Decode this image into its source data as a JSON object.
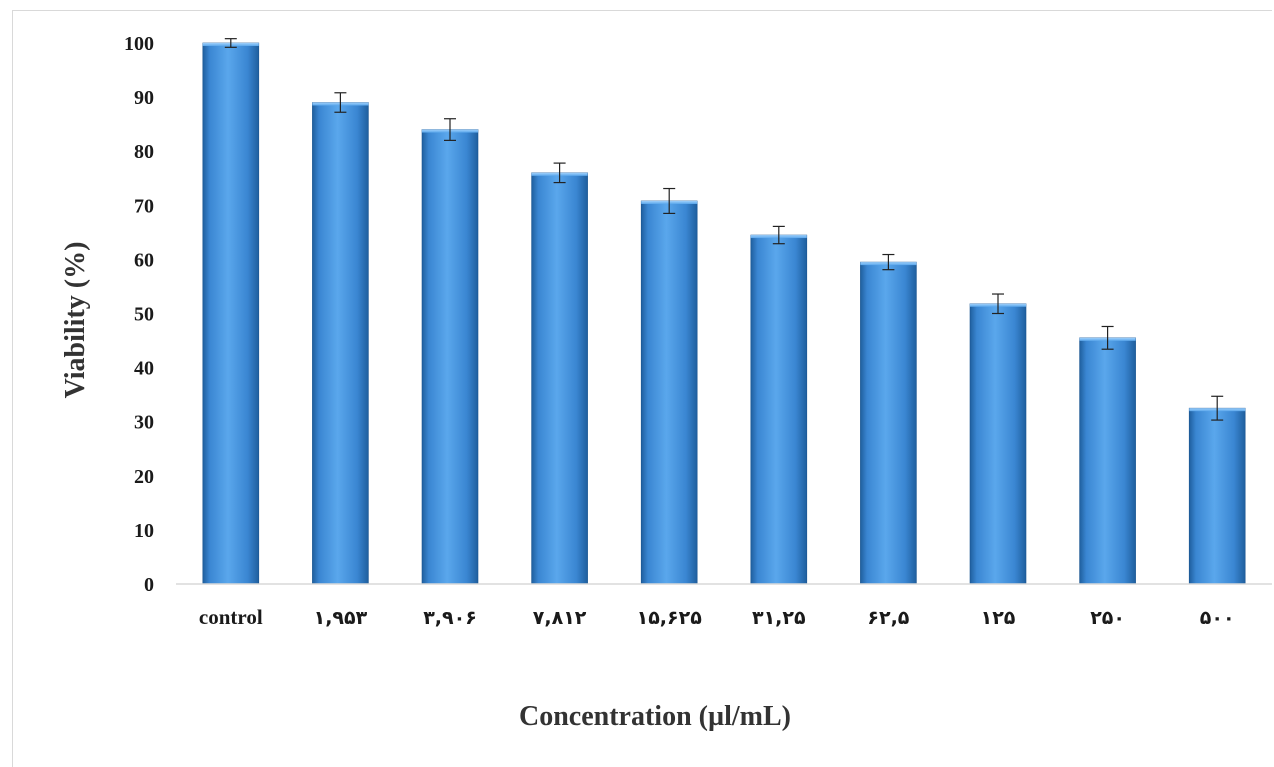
{
  "chart_data": {
    "type": "bar",
    "title": "",
    "xlabel": "Concentration (µl/mL)",
    "ylabel": "Viability (%)",
    "ylim": [
      0,
      100
    ],
    "yticks": [
      "0",
      "10",
      "20",
      "30",
      "40",
      "50",
      "60",
      "70",
      "80",
      "90",
      "100"
    ],
    "categories": [
      "control",
      "۱,۹۵۳",
      "۳,۹۰۶",
      "۷,۸۱۲",
      "۱۵,۶۲۵",
      "۳۱,۲۵",
      "۶۲,۵",
      "۱۲۵",
      "۲۵۰",
      "۵۰۰"
    ],
    "values": [
      100,
      89,
      84,
      76,
      70.8,
      64.5,
      59.5,
      51.8,
      45.5,
      32.5
    ],
    "errors": [
      0.8,
      1.8,
      2.0,
      1.8,
      2.3,
      1.6,
      1.4,
      1.8,
      2.1,
      2.2
    ],
    "bar_color": "#3d8fdc",
    "grid": false,
    "legend": "none"
  }
}
